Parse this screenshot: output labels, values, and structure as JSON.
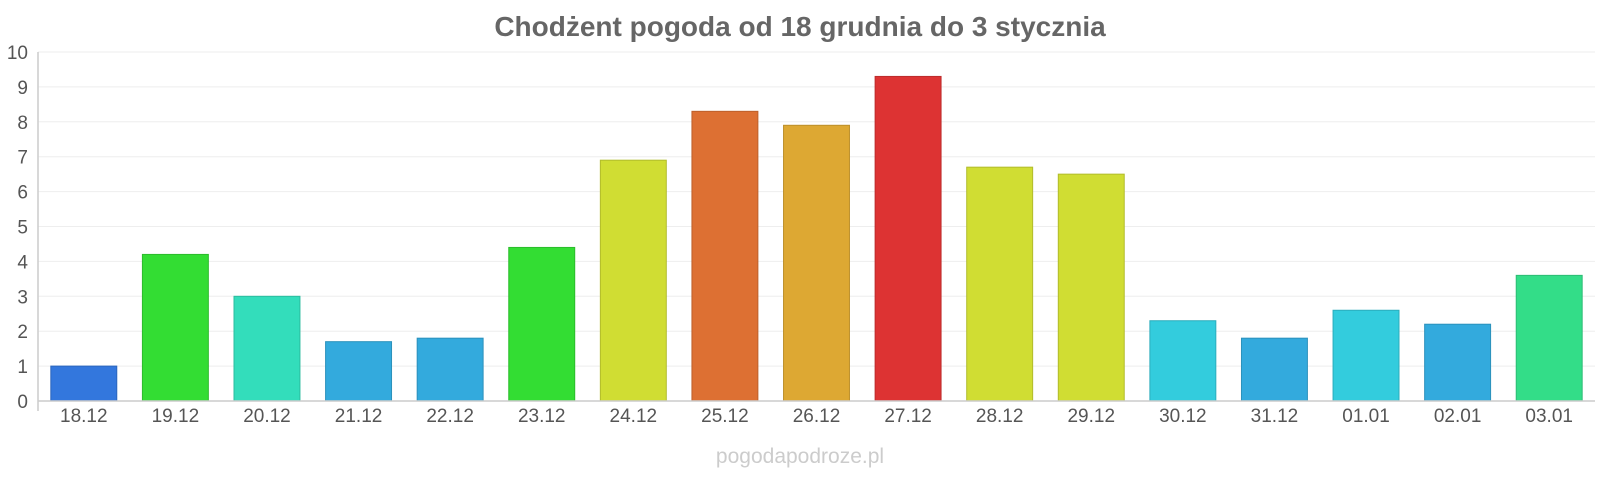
{
  "chart_data": {
    "type": "bar",
    "title": "Chodżent pogoda od 18 grudnia do 3 stycznia",
    "xlabel": "",
    "ylabel": "",
    "ylim": [
      0,
      10
    ],
    "yticks": [
      "0",
      "1",
      "2",
      "3",
      "4",
      "5",
      "6",
      "7",
      "8",
      "9",
      "10"
    ],
    "grid": true,
    "categories": [
      "18.12",
      "19.12",
      "20.12",
      "21.12",
      "22.12",
      "23.12",
      "24.12",
      "25.12",
      "26.12",
      "27.12",
      "28.12",
      "29.12",
      "30.12",
      "31.12",
      "01.01",
      "02.01",
      "03.01"
    ],
    "values": [
      1.0,
      4.2,
      3.0,
      1.7,
      1.8,
      4.4,
      6.9,
      8.3,
      7.9,
      9.3,
      6.7,
      6.5,
      2.3,
      1.8,
      2.6,
      2.2,
      3.6
    ],
    "colors": [
      "#3377dd",
      "#33dd33",
      "#33ddbb",
      "#33aadd",
      "#33aadd",
      "#33dd33",
      "#d0dd33",
      "#dd7033",
      "#dda833",
      "#dd3333",
      "#d0dd33",
      "#d0dd33",
      "#33ccdd",
      "#33aadd",
      "#33ccdd",
      "#33aadd",
      "#33dd88"
    ]
  },
  "watermark": "pogodapodroze.pl"
}
